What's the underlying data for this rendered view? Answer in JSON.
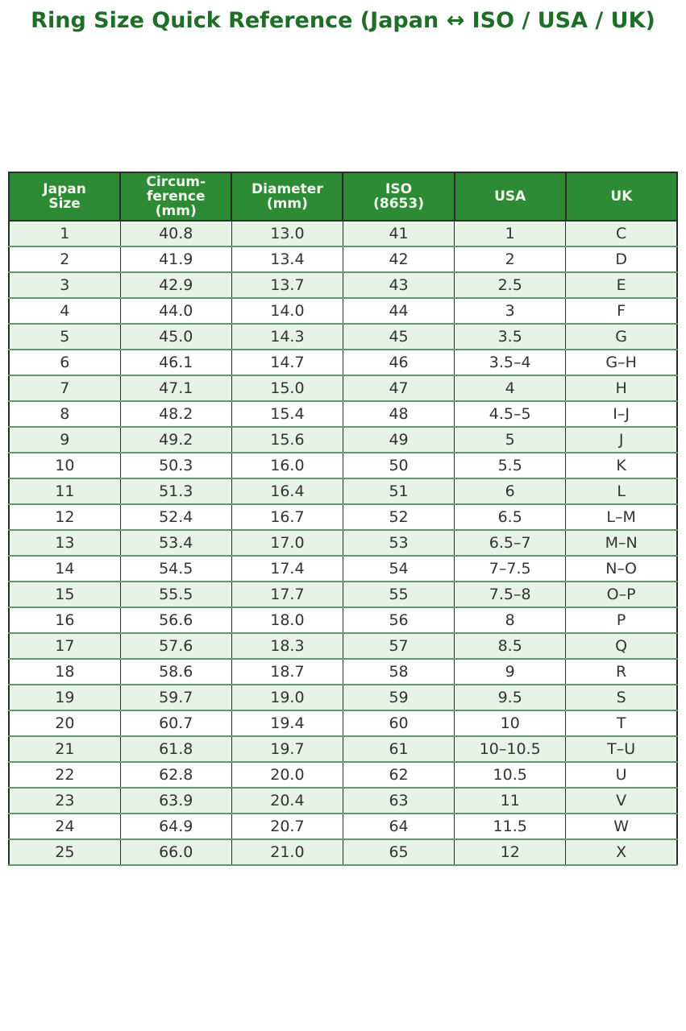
{
  "page": {
    "title": "Ring Size Quick Reference (Japan ↔ ISO / USA / UK)"
  },
  "colors": {
    "title_text": "#1e6e28",
    "header_bg": "#2e8b35",
    "header_text": "#f2f8f0",
    "row_alt_bg": "#e7f3e7",
    "row_bg": "#ffffff",
    "grid_vertical": "#2b2b2b",
    "grid_horizontal": "#57a25a",
    "body_text": "#333333"
  },
  "chart_data": {
    "type": "table",
    "title": "Ring Size Quick Reference (Japan ↔ ISO / USA / UK)",
    "columns": [
      "Japan\nSize",
      "Circum-\nference\n(mm)",
      "Diameter\n(mm)",
      "ISO\n(8653)",
      "USA",
      "UK"
    ],
    "rows": [
      [
        "1",
        "40.8",
        "13.0",
        "41",
        "1",
        "C"
      ],
      [
        "2",
        "41.9",
        "13.4",
        "42",
        "2",
        "D"
      ],
      [
        "3",
        "42.9",
        "13.7",
        "43",
        "2.5",
        "E"
      ],
      [
        "4",
        "44.0",
        "14.0",
        "44",
        "3",
        "F"
      ],
      [
        "5",
        "45.0",
        "14.3",
        "45",
        "3.5",
        "G"
      ],
      [
        "6",
        "46.1",
        "14.7",
        "46",
        "3.5–4",
        "G–H"
      ],
      [
        "7",
        "47.1",
        "15.0",
        "47",
        "4",
        "H"
      ],
      [
        "8",
        "48.2",
        "15.4",
        "48",
        "4.5–5",
        "I–J"
      ],
      [
        "9",
        "49.2",
        "15.6",
        "49",
        "5",
        "J"
      ],
      [
        "10",
        "50.3",
        "16.0",
        "50",
        "5.5",
        "K"
      ],
      [
        "11",
        "51.3",
        "16.4",
        "51",
        "6",
        "L"
      ],
      [
        "12",
        "52.4",
        "16.7",
        "52",
        "6.5",
        "L–M"
      ],
      [
        "13",
        "53.4",
        "17.0",
        "53",
        "6.5–7",
        "M–N"
      ],
      [
        "14",
        "54.5",
        "17.4",
        "54",
        "7–7.5",
        "N–O"
      ],
      [
        "15",
        "55.5",
        "17.7",
        "55",
        "7.5–8",
        "O–P"
      ],
      [
        "16",
        "56.6",
        "18.0",
        "56",
        "8",
        "P"
      ],
      [
        "17",
        "57.6",
        "18.3",
        "57",
        "8.5",
        "Q"
      ],
      [
        "18",
        "58.6",
        "18.7",
        "58",
        "9",
        "R"
      ],
      [
        "19",
        "59.7",
        "19.0",
        "59",
        "9.5",
        "S"
      ],
      [
        "20",
        "60.7",
        "19.4",
        "60",
        "10",
        "T"
      ],
      [
        "21",
        "61.8",
        "19.7",
        "61",
        "10–10.5",
        "T–U"
      ],
      [
        "22",
        "62.8",
        "20.0",
        "62",
        "10.5",
        "U"
      ],
      [
        "23",
        "63.9",
        "20.4",
        "63",
        "11",
        "V"
      ],
      [
        "24",
        "64.9",
        "20.7",
        "64",
        "11.5",
        "W"
      ],
      [
        "25",
        "66.0",
        "21.0",
        "65",
        "12",
        "X"
      ]
    ]
  }
}
